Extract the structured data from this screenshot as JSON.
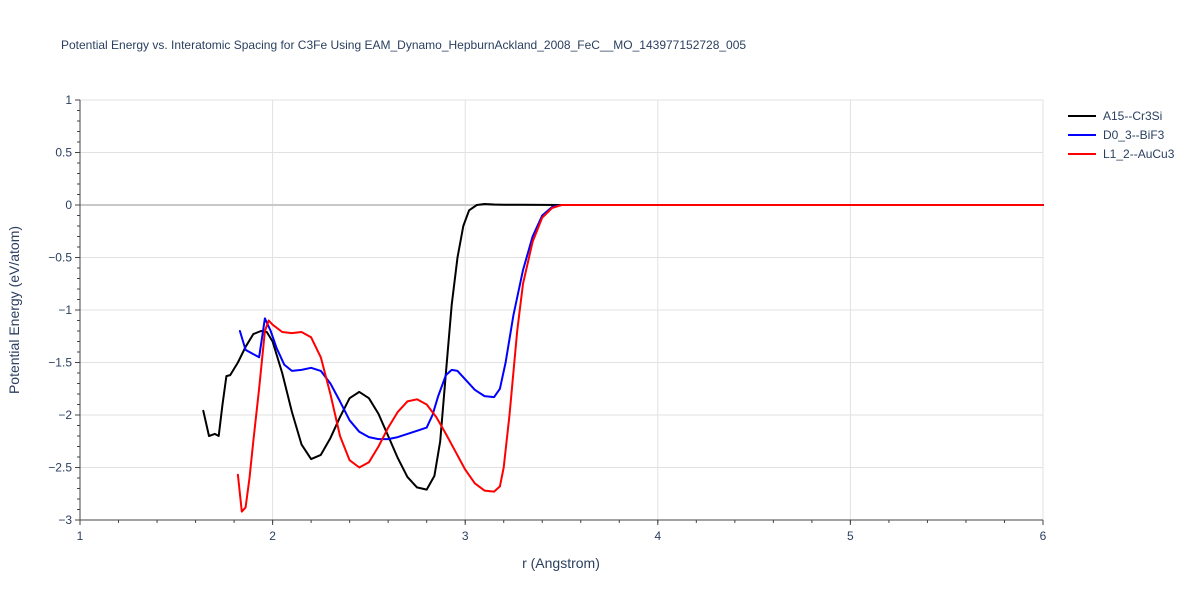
{
  "chart_data": {
    "type": "line",
    "title": "Potential Energy vs. Interatomic Spacing for C3Fe Using EAM_Dynamo_HepburnAckland_2008_FeC__MO_143977152728_005",
    "xlabel": "r (Angstrom)",
    "ylabel": "Potential Energy (eV/atom)",
    "xlim": [
      1,
      6
    ],
    "ylim": [
      -3,
      1
    ],
    "xticks": [
      1,
      2,
      3,
      4,
      5,
      6
    ],
    "yticks": [
      1,
      0.5,
      0,
      -0.5,
      -1,
      -1.5,
      -2,
      -2.5,
      -3
    ],
    "ytick_labels": [
      "1",
      "0.5",
      "0",
      "−0.5",
      "−1",
      "−1.5",
      "−2",
      "−2.5",
      "−3"
    ],
    "grid": true,
    "legend_position": "top-right",
    "series": [
      {
        "name": "A15--Cr3Si",
        "color": "#000000",
        "x": [
          1.64,
          1.67,
          1.7,
          1.72,
          1.74,
          1.76,
          1.78,
          1.82,
          1.86,
          1.9,
          1.94,
          1.97,
          2.0,
          2.05,
          2.1,
          2.15,
          2.2,
          2.25,
          2.3,
          2.35,
          2.4,
          2.45,
          2.5,
          2.55,
          2.6,
          2.65,
          2.7,
          2.75,
          2.8,
          2.84,
          2.87,
          2.9,
          2.93,
          2.96,
          2.99,
          3.02,
          3.06,
          3.1,
          3.15,
          3.2,
          3.3,
          3.4,
          3.5,
          6.0
        ],
        "y": [
          -1.96,
          -2.2,
          -2.18,
          -2.2,
          -1.9,
          -1.63,
          -1.62,
          -1.5,
          -1.35,
          -1.23,
          -1.2,
          -1.21,
          -1.3,
          -1.6,
          -1.97,
          -2.28,
          -2.42,
          -2.38,
          -2.22,
          -2.02,
          -1.84,
          -1.78,
          -1.84,
          -1.99,
          -2.2,
          -2.41,
          -2.59,
          -2.69,
          -2.71,
          -2.58,
          -2.25,
          -1.6,
          -0.95,
          -0.5,
          -0.2,
          -0.05,
          0.0,
          0.01,
          0.005,
          0.003,
          0.002,
          0.001,
          0.0,
          0.0
        ]
      },
      {
        "name": "D0_3--BiF3",
        "color": "#0000ff",
        "x": [
          1.83,
          1.86,
          1.9,
          1.93,
          1.96,
          1.99,
          2.02,
          2.06,
          2.1,
          2.15,
          2.2,
          2.25,
          2.3,
          2.35,
          2.4,
          2.45,
          2.5,
          2.55,
          2.6,
          2.65,
          2.7,
          2.75,
          2.8,
          2.83,
          2.86,
          2.9,
          2.93,
          2.96,
          3.0,
          3.05,
          3.1,
          3.15,
          3.18,
          3.21,
          3.25,
          3.3,
          3.35,
          3.4,
          3.45,
          3.5,
          6.0
        ],
        "y": [
          -1.2,
          -1.38,
          -1.42,
          -1.45,
          -1.08,
          -1.2,
          -1.36,
          -1.52,
          -1.58,
          -1.57,
          -1.55,
          -1.58,
          -1.7,
          -1.87,
          -2.05,
          -2.16,
          -2.21,
          -2.23,
          -2.23,
          -2.21,
          -2.18,
          -2.15,
          -2.12,
          -2.0,
          -1.82,
          -1.62,
          -1.57,
          -1.58,
          -1.66,
          -1.76,
          -1.82,
          -1.83,
          -1.75,
          -1.5,
          -1.05,
          -0.62,
          -0.3,
          -0.1,
          -0.02,
          0.0,
          0.0
        ]
      },
      {
        "name": "L1_2--AuCu3",
        "color": "#ff0000",
        "x": [
          1.82,
          1.84,
          1.86,
          1.88,
          1.9,
          1.93,
          1.96,
          1.98,
          2.0,
          2.05,
          2.1,
          2.15,
          2.2,
          2.25,
          2.3,
          2.35,
          2.4,
          2.45,
          2.5,
          2.55,
          2.6,
          2.65,
          2.7,
          2.75,
          2.8,
          2.85,
          2.9,
          2.95,
          3.0,
          3.05,
          3.1,
          3.15,
          3.18,
          3.2,
          3.23,
          3.27,
          3.3,
          3.35,
          3.4,
          3.45,
          3.5,
          6.0
        ],
        "y": [
          -2.57,
          -2.92,
          -2.88,
          -2.6,
          -2.25,
          -1.75,
          -1.2,
          -1.1,
          -1.14,
          -1.21,
          -1.22,
          -1.21,
          -1.26,
          -1.45,
          -1.8,
          -2.2,
          -2.43,
          -2.5,
          -2.45,
          -2.3,
          -2.12,
          -1.97,
          -1.87,
          -1.85,
          -1.9,
          -2.02,
          -2.18,
          -2.35,
          -2.52,
          -2.65,
          -2.72,
          -2.73,
          -2.68,
          -2.5,
          -2.0,
          -1.2,
          -0.75,
          -0.35,
          -0.12,
          -0.03,
          0.0,
          0.0
        ]
      }
    ]
  }
}
